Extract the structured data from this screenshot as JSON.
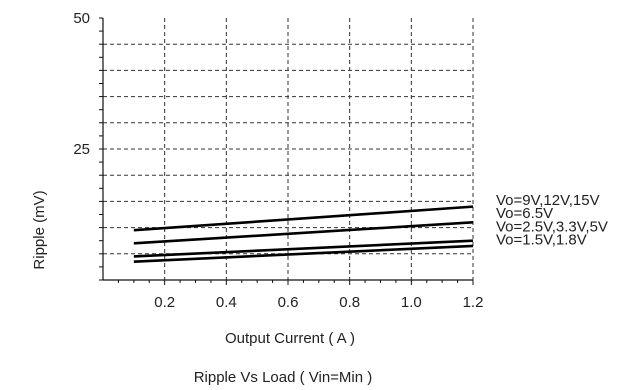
{
  "chart_data": {
    "type": "line",
    "title": "Ripple  Vs Load ( Vin=Min )",
    "xlabel": "Output Current ( A )",
    "ylabel": "Ripple (mV)",
    "xlim": [
      0.0,
      1.2
    ],
    "ylim": [
      0,
      50
    ],
    "x_ticks": [
      0.2,
      0.4,
      0.6,
      0.8,
      1.0,
      1.2
    ],
    "x_tick_labels": [
      "0.2",
      "0.4",
      "0.6",
      "0.8",
      "1.0",
      "1.2"
    ],
    "y_tick_labels": [
      {
        "value": 50,
        "label": "50"
      },
      {
        "value": 25,
        "label": "25"
      }
    ],
    "grid": "dashed",
    "legend_position": "right, inline at line ends",
    "series": [
      {
        "name": "Vo=9V,12V,15V",
        "x": [
          0.1,
          1.2
        ],
        "y": [
          9.5,
          14.0
        ]
      },
      {
        "name": "Vo=6.5V",
        "x": [
          0.1,
          1.2
        ],
        "y": [
          7.0,
          11.0
        ]
      },
      {
        "name": "Vo=2.5V,3.3V,5V",
        "x": [
          0.1,
          1.2
        ],
        "y": [
          4.5,
          7.5
        ]
      },
      {
        "name": "Vo=1.5V,1.8V",
        "x": [
          0.1,
          1.2
        ],
        "y": [
          3.5,
          6.5
        ]
      }
    ]
  }
}
